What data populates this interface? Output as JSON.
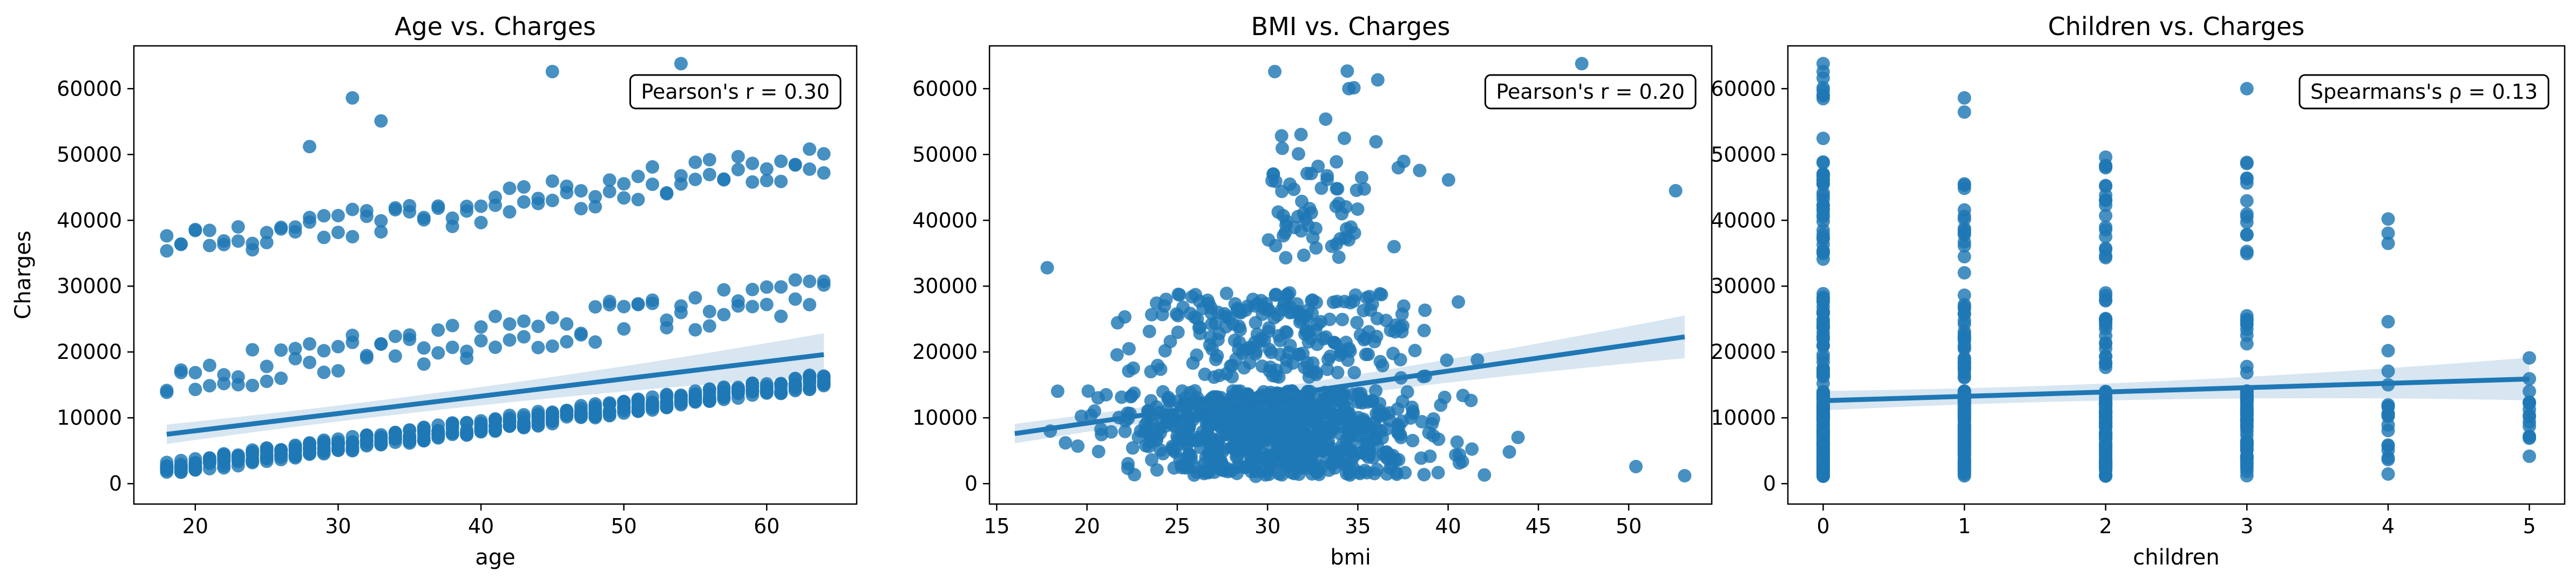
{
  "chart_data": [
    {
      "type": "scatter",
      "title": "Age vs. Charges",
      "xlabel": "age",
      "ylabel": "Charges",
      "xlim": [
        15.7,
        66.3
      ],
      "ylim": [
        -3100,
        66500
      ],
      "xticks": [
        20,
        30,
        40,
        50,
        60
      ],
      "yticks": [
        0,
        10000,
        20000,
        30000,
        40000,
        50000,
        60000
      ],
      "annotation": "Pearson's r = 0.30",
      "regression": {
        "x": [
          18,
          64
        ],
        "y": [
          7500,
          19600
        ]
      },
      "series": [
        {
          "name": "",
          "values": []
        }
      ]
    },
    {
      "type": "scatter",
      "title": "BMI vs. Charges",
      "xlabel": "bmi",
      "ylabel": "",
      "xlim": [
        14.6,
        54.6
      ],
      "ylim": [
        -3100,
        66500
      ],
      "xticks": [
        15,
        20,
        25,
        30,
        35,
        40,
        45,
        50
      ],
      "yticks": [
        0,
        10000,
        20000,
        30000,
        40000,
        50000,
        60000
      ],
      "annotation": "Pearson's r = 0.20",
      "regression": {
        "x": [
          16,
          53.1
        ],
        "y": [
          7600,
          22300
        ]
      },
      "series": [
        {
          "name": "",
          "values": []
        }
      ]
    },
    {
      "type": "scatter",
      "title": "Children vs. Charges",
      "xlabel": "children",
      "ylabel": "",
      "xlim": [
        -0.25,
        5.25
      ],
      "ylim": [
        -3100,
        66500
      ],
      "xticks": [
        0,
        1,
        2,
        3,
        4,
        5
      ],
      "yticks": [
        0,
        10000,
        20000,
        30000,
        40000,
        50000,
        60000
      ],
      "annotation": "Spearmans's ρ = 0.13",
      "regression": {
        "x": [
          0,
          5
        ],
        "y": [
          12600,
          15900
        ]
      },
      "series": [
        {
          "name": "",
          "values": []
        }
      ]
    }
  ],
  "colors": {
    "points": "#1f77b4",
    "line": "#1f77b4",
    "band": "#1f77b4"
  }
}
